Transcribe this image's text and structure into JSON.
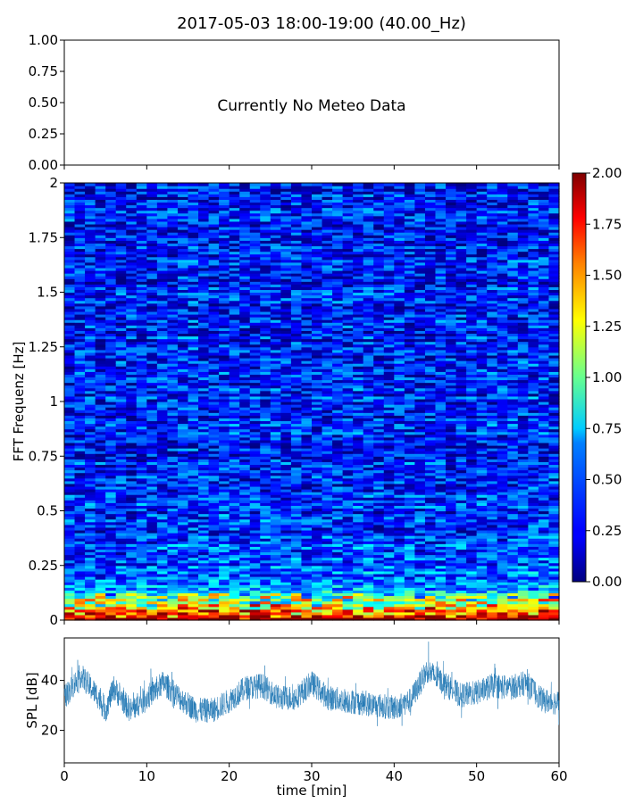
{
  "chart_data": [
    {
      "type": "line",
      "panel": "meteo",
      "title": "2017-05-03 18:00-19:00 (40.00_Hz)",
      "annotation": "Currently No Meteo Data",
      "ylim": [
        0,
        1
      ],
      "yticks": [
        "0.00",
        "0.25",
        "0.50",
        "0.75",
        "1.00"
      ],
      "yticks_values": [
        0,
        0.25,
        0.5,
        0.75,
        1.0
      ],
      "xlim": [
        0,
        60
      ],
      "xticks_values": [
        0,
        10,
        20,
        30,
        40,
        50,
        60
      ],
      "series": []
    },
    {
      "type": "heatmap",
      "panel": "spectrogram",
      "ylabel": "FFT Frequenz [Hz]",
      "ylim": [
        0,
        2
      ],
      "yticks": [
        "0",
        "0.25",
        "0.5",
        "0.75",
        "1",
        "1.25",
        "1.5",
        "1.75",
        "2"
      ],
      "yticks_values": [
        0,
        0.25,
        0.5,
        0.75,
        1,
        1.25,
        1.5,
        1.75,
        2
      ],
      "xlim": [
        0,
        60
      ],
      "xticks_values": [
        0,
        10,
        20,
        30,
        40,
        50,
        60
      ],
      "colormap": "jet",
      "colorbar": {
        "range": [
          0,
          2
        ],
        "ticks": [
          "0.00",
          "0.25",
          "0.50",
          "0.75",
          "1.00",
          "1.25",
          "1.50",
          "1.75",
          "2.00"
        ],
        "ticks_values": [
          0,
          0.25,
          0.5,
          0.75,
          1.0,
          1.25,
          1.5,
          1.75,
          2.0
        ]
      },
      "time_bins": 48,
      "freq_bins": 160,
      "value_model": {
        "base": 0.28,
        "low_freq_boost_at_0Hz": 1.6,
        "low_freq_decay_Hz": 0.06,
        "mid_low_boost": 0.25,
        "mid_low_decay_Hz": 0.3,
        "noise_amplitude": 0.3
      }
    },
    {
      "type": "line",
      "panel": "spl",
      "xlabel": "time [min]",
      "ylabel": "SPL [dB]",
      "xlim": [
        0,
        60
      ],
      "ylim": [
        7,
        57
      ],
      "xticks": [
        "0",
        "10",
        "20",
        "30",
        "40",
        "50",
        "60"
      ],
      "xticks_values": [
        0,
        10,
        20,
        30,
        40,
        50,
        60
      ],
      "yticks": [
        "20",
        "40"
      ],
      "yticks_values": [
        20,
        40
      ],
      "series": [
        {
          "name": "SPL",
          "color": "#1f77b4",
          "x": [
            0,
            2,
            4,
            5,
            6,
            8,
            10,
            12,
            14,
            16,
            18,
            20,
            22,
            24,
            26,
            28,
            30,
            32,
            34,
            36,
            38,
            40,
            42,
            44,
            46,
            48,
            50,
            52,
            54,
            56,
            58,
            60
          ],
          "y": [
            33,
            42,
            34,
            28,
            37,
            28,
            33,
            39,
            33,
            28,
            28,
            32,
            37,
            38,
            33,
            33,
            39,
            33,
            32,
            31,
            30,
            29,
            32,
            44,
            39,
            34,
            35,
            38,
            37,
            39,
            32,
            31
          ],
          "noise_db": 5
        }
      ]
    }
  ]
}
